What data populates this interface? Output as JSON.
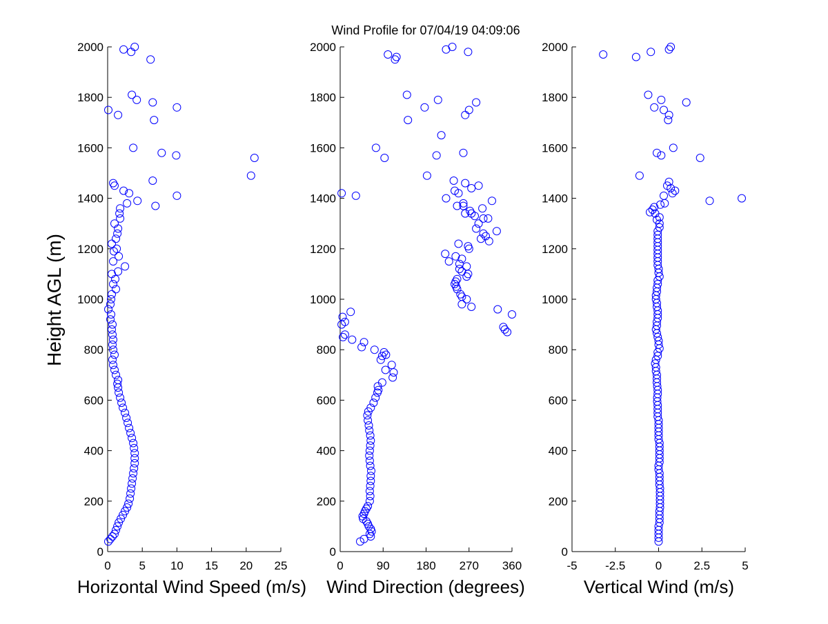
{
  "title": "Wind Profile for  07/04/19 04:09:06",
  "ylabel": "Height AGL (m)",
  "marker_color": "#0000ff",
  "chart_data": [
    {
      "type": "scatter",
      "id": "speed",
      "xlabel": "Horizontal Wind Speed (m/s)",
      "ylabel": "Height AGL (m)",
      "xlim": [
        0,
        25
      ],
      "ylim": [
        0,
        2000
      ],
      "xticks": [
        0,
        5,
        10,
        15,
        20,
        25
      ],
      "xtick_labels": [
        "0",
        "5",
        "10",
        "15",
        "20",
        "25"
      ],
      "yticks": [
        0,
        200,
        400,
        600,
        800,
        1000,
        1200,
        1400,
        1600,
        1800,
        2000
      ],
      "points": [
        [
          0.1,
          40
        ],
        [
          0.4,
          50
        ],
        [
          0.7,
          60
        ],
        [
          1.0,
          70
        ],
        [
          1.2,
          85
        ],
        [
          1.4,
          100
        ],
        [
          1.6,
          115
        ],
        [
          1.9,
          130
        ],
        [
          2.2,
          145
        ],
        [
          2.5,
          160
        ],
        [
          2.8,
          175
        ],
        [
          3.0,
          190
        ],
        [
          3.2,
          210
        ],
        [
          3.3,
          230
        ],
        [
          3.4,
          250
        ],
        [
          3.5,
          270
        ],
        [
          3.6,
          290
        ],
        [
          3.7,
          310
        ],
        [
          3.8,
          330
        ],
        [
          3.9,
          350
        ],
        [
          3.9,
          370
        ],
        [
          3.9,
          390
        ],
        [
          3.8,
          410
        ],
        [
          3.7,
          430
        ],
        [
          3.5,
          450
        ],
        [
          3.3,
          470
        ],
        [
          3.1,
          490
        ],
        [
          2.9,
          510
        ],
        [
          2.7,
          530
        ],
        [
          2.5,
          550
        ],
        [
          2.2,
          570
        ],
        [
          2.0,
          590
        ],
        [
          1.8,
          610
        ],
        [
          1.6,
          630
        ],
        [
          1.5,
          650
        ],
        [
          1.4,
          665
        ],
        [
          1.5,
          680
        ],
        [
          1.2,
          700
        ],
        [
          1.0,
          720
        ],
        [
          0.8,
          740
        ],
        [
          0.7,
          760
        ],
        [
          1.0,
          780
        ],
        [
          0.8,
          800
        ],
        [
          0.7,
          820
        ],
        [
          0.8,
          840
        ],
        [
          0.7,
          860
        ],
        [
          0.6,
          880
        ],
        [
          0.7,
          900
        ],
        [
          0.4,
          920
        ],
        [
          0.5,
          940
        ],
        [
          0.1,
          960
        ],
        [
          0.4,
          980
        ],
        [
          0.5,
          1000
        ],
        [
          0.6,
          1020
        ],
        [
          1.2,
          1040
        ],
        [
          0.8,
          1060
        ],
        [
          1.1,
          1080
        ],
        [
          0.6,
          1100
        ],
        [
          1.5,
          1110
        ],
        [
          2.5,
          1130
        ],
        [
          0.8,
          1150
        ],
        [
          1.6,
          1170
        ],
        [
          0.9,
          1190
        ],
        [
          1.3,
          1200
        ],
        [
          0.6,
          1220
        ],
        [
          1.2,
          1240
        ],
        [
          1.4,
          1260
        ],
        [
          1.5,
          1280
        ],
        [
          1.0,
          1300
        ],
        [
          1.8,
          1320
        ],
        [
          1.7,
          1340
        ],
        [
          1.8,
          1360
        ],
        [
          2.8,
          1380
        ],
        [
          4.3,
          1390
        ],
        [
          6.9,
          1370
        ],
        [
          10.0,
          1410
        ],
        [
          3.1,
          1420
        ],
        [
          2.3,
          1430
        ],
        [
          6.5,
          1470
        ],
        [
          0.8,
          1460
        ],
        [
          1.0,
          1450
        ],
        [
          20.7,
          1490
        ],
        [
          21.2,
          1560
        ],
        [
          9.9,
          1570
        ],
        [
          7.8,
          1580
        ],
        [
          3.7,
          1600
        ],
        [
          6.7,
          1710
        ],
        [
          1.5,
          1730
        ],
        [
          0.1,
          1750
        ],
        [
          10.0,
          1760
        ],
        [
          6.5,
          1780
        ],
        [
          4.2,
          1790
        ],
        [
          3.5,
          1810
        ],
        [
          6.2,
          1950
        ],
        [
          3.4,
          1980
        ],
        [
          2.3,
          1990
        ],
        [
          3.9,
          2000
        ]
      ]
    },
    {
      "type": "scatter",
      "id": "direction",
      "xlabel": "Wind Direction (degrees)",
      "ylabel": "",
      "xlim": [
        0,
        360
      ],
      "ylim": [
        0,
        2000
      ],
      "xticks": [
        0,
        90,
        180,
        270,
        360
      ],
      "xtick_labels": [
        "0",
        "90",
        "180",
        "270",
        "360"
      ],
      "yticks": [
        0,
        200,
        400,
        600,
        800,
        1000,
        1200,
        1400,
        1600,
        1800,
        2000
      ],
      "points": [
        [
          42,
          40
        ],
        [
          50,
          50
        ],
        [
          64,
          60
        ],
        [
          62,
          70
        ],
        [
          66,
          80
        ],
        [
          64,
          90
        ],
        [
          60,
          100
        ],
        [
          58,
          110
        ],
        [
          55,
          120
        ],
        [
          48,
          130
        ],
        [
          47,
          140
        ],
        [
          50,
          150
        ],
        [
          52,
          160
        ],
        [
          55,
          170
        ],
        [
          58,
          180
        ],
        [
          62,
          200
        ],
        [
          63,
          220
        ],
        [
          62,
          240
        ],
        [
          63,
          260
        ],
        [
          64,
          280
        ],
        [
          64,
          300
        ],
        [
          65,
          320
        ],
        [
          63,
          340
        ],
        [
          62,
          360
        ],
        [
          61,
          380
        ],
        [
          62,
          400
        ],
        [
          63,
          420
        ],
        [
          64,
          440
        ],
        [
          63,
          460
        ],
        [
          61,
          480
        ],
        [
          60,
          500
        ],
        [
          58,
          520
        ],
        [
          57,
          540
        ],
        [
          59,
          555
        ],
        [
          64,
          570
        ],
        [
          70,
          590
        ],
        [
          74,
          610
        ],
        [
          78,
          630
        ],
        [
          80,
          640
        ],
        [
          79,
          655
        ],
        [
          88,
          670
        ],
        [
          110,
          690
        ],
        [
          112,
          710
        ],
        [
          108,
          740
        ],
        [
          95,
          720
        ],
        [
          85,
          760
        ],
        [
          88,
          775
        ],
        [
          92,
          790
        ],
        [
          72,
          800
        ],
        [
          96,
          780
        ],
        [
          45,
          810
        ],
        [
          50,
          830
        ],
        [
          25,
          840
        ],
        [
          10,
          860
        ],
        [
          6,
          850
        ],
        [
          10,
          910
        ],
        [
          3,
          900
        ],
        [
          22,
          950
        ],
        [
          5,
          930
        ],
        [
          350,
          870
        ],
        [
          345,
          880
        ],
        [
          342,
          890
        ],
        [
          360,
          940
        ],
        [
          330,
          960
        ],
        [
          275,
          970
        ],
        [
          255,
          980
        ],
        [
          265,
          1000
        ],
        [
          255,
          1010
        ],
        [
          252,
          1020
        ],
        [
          245,
          1040
        ],
        [
          243,
          1050
        ],
        [
          240,
          1060
        ],
        [
          242,
          1070
        ],
        [
          245,
          1080
        ],
        [
          265,
          1090
        ],
        [
          268,
          1100
        ],
        [
          255,
          1110
        ],
        [
          250,
          1120
        ],
        [
          265,
          1130
        ],
        [
          250,
          1140
        ],
        [
          228,
          1150
        ],
        [
          255,
          1160
        ],
        [
          242,
          1170
        ],
        [
          220,
          1180
        ],
        [
          270,
          1200
        ],
        [
          268,
          1210
        ],
        [
          248,
          1220
        ],
        [
          312,
          1230
        ],
        [
          295,
          1240
        ],
        [
          305,
          1250
        ],
        [
          300,
          1260
        ],
        [
          328,
          1270
        ],
        [
          285,
          1280
        ],
        [
          290,
          1300
        ],
        [
          300,
          1320
        ],
        [
          310,
          1320
        ],
        [
          282,
          1330
        ],
        [
          275,
          1340
        ],
        [
          262,
          1340
        ],
        [
          272,
          1350
        ],
        [
          298,
          1360
        ],
        [
          258,
          1370
        ],
        [
          245,
          1370
        ],
        [
          258,
          1380
        ],
        [
          318,
          1390
        ],
        [
          222,
          1400
        ],
        [
          33,
          1410
        ],
        [
          3,
          1420
        ],
        [
          248,
          1420
        ],
        [
          240,
          1430
        ],
        [
          275,
          1440
        ],
        [
          290,
          1450
        ],
        [
          262,
          1460
        ],
        [
          238,
          1470
        ],
        [
          182,
          1490
        ],
        [
          258,
          1580
        ],
        [
          202,
          1570
        ],
        [
          93,
          1560
        ],
        [
          75,
          1600
        ],
        [
          212,
          1650
        ],
        [
          142,
          1710
        ],
        [
          262,
          1730
        ],
        [
          270,
          1750
        ],
        [
          177,
          1760
        ],
        [
          285,
          1780
        ],
        [
          205,
          1790
        ],
        [
          140,
          1810
        ],
        [
          115,
          1950
        ],
        [
          118,
          1960
        ],
        [
          100,
          1970
        ],
        [
          268,
          1980
        ],
        [
          222,
          1990
        ],
        [
          235,
          2000
        ]
      ]
    },
    {
      "type": "scatter",
      "id": "vertical",
      "xlabel": "Vertical Wind (m/s)",
      "ylabel": "",
      "xlim": [
        -5,
        5
      ],
      "ylim": [
        0,
        2000
      ],
      "xticks": [
        -5,
        -2.5,
        0,
        2.5,
        5
      ],
      "xtick_labels": [
        "-5",
        "-2.5",
        "0",
        "2.5",
        "5"
      ],
      "yticks": [
        0,
        200,
        400,
        600,
        800,
        1000,
        1200,
        1400,
        1600,
        1800,
        2000
      ],
      "points": [
        [
          0.0,
          40
        ],
        [
          0.0,
          55
        ],
        [
          0.0,
          70
        ],
        [
          0.0,
          85
        ],
        [
          0.0,
          100
        ],
        [
          0.05,
          115
        ],
        [
          0.05,
          130
        ],
        [
          0.05,
          145
        ],
        [
          0.05,
          160
        ],
        [
          0.08,
          175
        ],
        [
          0.08,
          190
        ],
        [
          0.08,
          205
        ],
        [
          0.08,
          220
        ],
        [
          0.08,
          235
        ],
        [
          0.08,
          250
        ],
        [
          0.05,
          265
        ],
        [
          0.05,
          280
        ],
        [
          0.05,
          295
        ],
        [
          0.05,
          310
        ],
        [
          0.0,
          325
        ],
        [
          0.0,
          340
        ],
        [
          0.05,
          355
        ],
        [
          0.05,
          370
        ],
        [
          0.05,
          385
        ],
        [
          0.05,
          400
        ],
        [
          0.05,
          415
        ],
        [
          0.05,
          430
        ],
        [
          0.0,
          445
        ],
        [
          0.0,
          460
        ],
        [
          0.0,
          475
        ],
        [
          0.0,
          490
        ],
        [
          0.0,
          505
        ],
        [
          0.0,
          520
        ],
        [
          -0.05,
          535
        ],
        [
          -0.05,
          550
        ],
        [
          -0.05,
          565
        ],
        [
          -0.05,
          580
        ],
        [
          -0.08,
          595
        ],
        [
          -0.08,
          610
        ],
        [
          -0.05,
          625
        ],
        [
          -0.05,
          640
        ],
        [
          -0.08,
          655
        ],
        [
          -0.1,
          670
        ],
        [
          -0.1,
          685
        ],
        [
          -0.1,
          700
        ],
        [
          -0.15,
          715
        ],
        [
          -0.15,
          730
        ],
        [
          -0.2,
          745
        ],
        [
          -0.15,
          760
        ],
        [
          -0.05,
          775
        ],
        [
          -0.05,
          790
        ],
        [
          0.05,
          805
        ],
        [
          0.0,
          820
        ],
        [
          0.0,
          835
        ],
        [
          -0.05,
          850
        ],
        [
          -0.1,
          865
        ],
        [
          -0.15,
          880
        ],
        [
          -0.1,
          895
        ],
        [
          -0.1,
          910
        ],
        [
          -0.05,
          925
        ],
        [
          -0.05,
          940
        ],
        [
          -0.05,
          955
        ],
        [
          -0.1,
          970
        ],
        [
          -0.1,
          985
        ],
        [
          -0.15,
          1000
        ],
        [
          -0.15,
          1015
        ],
        [
          -0.1,
          1030
        ],
        [
          -0.1,
          1045
        ],
        [
          -0.05,
          1060
        ],
        [
          -0.05,
          1075
        ],
        [
          0.05,
          1090
        ],
        [
          0.0,
          1105
        ],
        [
          0.0,
          1120
        ],
        [
          -0.05,
          1135
        ],
        [
          -0.05,
          1150
        ],
        [
          -0.05,
          1165
        ],
        [
          -0.05,
          1180
        ],
        [
          -0.05,
          1195
        ],
        [
          -0.05,
          1210
        ],
        [
          -0.05,
          1225
        ],
        [
          -0.05,
          1240
        ],
        [
          -0.05,
          1255
        ],
        [
          -0.05,
          1270
        ],
        [
          0.05,
          1285
        ],
        [
          0.05,
          1300
        ],
        [
          -0.1,
          1315
        ],
        [
          0.05,
          1325
        ],
        [
          -0.2,
          1340
        ],
        [
          -0.5,
          1345
        ],
        [
          -0.35,
          1355
        ],
        [
          -0.25,
          1365
        ],
        [
          0.1,
          1375
        ],
        [
          0.35,
          1380
        ],
        [
          2.95,
          1390
        ],
        [
          4.8,
          1400
        ],
        [
          0.3,
          1410
        ],
        [
          0.8,
          1420
        ],
        [
          0.95,
          1430
        ],
        [
          0.7,
          1440
        ],
        [
          0.5,
          1450
        ],
        [
          0.6,
          1465
        ],
        [
          -1.1,
          1490
        ],
        [
          2.4,
          1560
        ],
        [
          0.15,
          1570
        ],
        [
          -0.1,
          1580
        ],
        [
          0.85,
          1600
        ],
        [
          0.55,
          1710
        ],
        [
          0.6,
          1730
        ],
        [
          0.3,
          1750
        ],
        [
          -0.25,
          1760
        ],
        [
          1.6,
          1780
        ],
        [
          0.15,
          1790
        ],
        [
          -0.6,
          1810
        ],
        [
          -1.3,
          1960
        ],
        [
          -3.2,
          1970
        ],
        [
          -0.45,
          1980
        ],
        [
          0.6,
          1990
        ],
        [
          0.7,
          2000
        ]
      ]
    }
  ]
}
